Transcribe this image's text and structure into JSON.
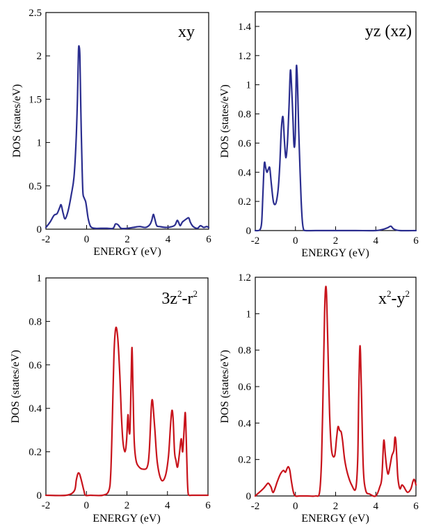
{
  "chart_data": [
    {
      "type": "line",
      "label": "xy",
      "xlabel": "ENERGY (eV)",
      "ylabel": "DOS (states/eV)",
      "xlim": [
        -2,
        6
      ],
      "ylim": [
        0,
        2.5
      ],
      "xticks": [
        "-2",
        "0",
        "2",
        "4",
        "6"
      ],
      "yticks": [
        "0",
        "0.5",
        "1",
        "1.5",
        "2",
        "2.5"
      ],
      "color": "#2b2e8f",
      "series": [
        {
          "x": [
            -2.0,
            -1.8,
            -1.6,
            -1.45,
            -1.32,
            -1.25,
            -1.15,
            -1.05,
            -0.9,
            -0.75,
            -0.62,
            -0.52,
            -0.45,
            -0.4,
            -0.36,
            -0.33,
            -0.3,
            -0.26,
            -0.22,
            -0.18,
            -0.12,
            -0.05,
            0.0,
            0.08,
            0.2,
            0.4,
            0.7,
            1.0,
            1.3,
            1.42,
            1.55,
            1.7,
            2.0,
            2.3,
            2.6,
            2.9,
            3.1,
            3.2,
            3.28,
            3.35,
            3.45,
            3.6,
            3.9,
            4.2,
            4.35,
            4.45,
            4.52,
            4.6,
            4.7,
            4.8,
            4.92,
            5.02,
            5.1,
            5.2,
            5.3,
            5.45,
            5.6,
            5.75,
            5.9,
            6.0
          ],
          "y": [
            0.02,
            0.08,
            0.16,
            0.18,
            0.25,
            0.28,
            0.18,
            0.12,
            0.22,
            0.4,
            0.6,
            1.0,
            1.5,
            2.05,
            2.1,
            2.0,
            1.6,
            1.1,
            0.7,
            0.42,
            0.36,
            0.32,
            0.25,
            0.12,
            0.03,
            0.01,
            0.01,
            0.01,
            0.01,
            0.06,
            0.05,
            0.01,
            0.01,
            0.02,
            0.03,
            0.02,
            0.05,
            0.1,
            0.17,
            0.12,
            0.04,
            0.03,
            0.02,
            0.03,
            0.05,
            0.1,
            0.08,
            0.04,
            0.08,
            0.1,
            0.12,
            0.13,
            0.08,
            0.04,
            0.02,
            0.01,
            0.04,
            0.02,
            0.03,
            0.02
          ]
        }
      ]
    },
    {
      "type": "line",
      "label": "yz (xz)",
      "xlabel": "ENERGY (eV)",
      "ylabel": "DOS (states/eV)",
      "xlim": [
        -2,
        6
      ],
      "ylim": [
        0,
        1.5
      ],
      "xticks": [
        "-2",
        "0",
        "2",
        "4",
        "6"
      ],
      "yticks": [
        "0",
        "0.2",
        "0.4",
        "0.6",
        "0.8",
        "1",
        "1.2",
        "1.4"
      ],
      "color": "#2b2e8f",
      "series": [
        {
          "x": [
            -2.0,
            -1.85,
            -1.75,
            -1.68,
            -1.62,
            -1.55,
            -1.48,
            -1.42,
            -1.35,
            -1.28,
            -1.2,
            -1.1,
            -1.0,
            -0.92,
            -0.85,
            -0.78,
            -0.7,
            -0.62,
            -0.55,
            -0.48,
            -0.4,
            -0.32,
            -0.25,
            -0.18,
            -0.12,
            -0.08,
            -0.04,
            0.0,
            0.04,
            0.08,
            0.12,
            0.16,
            0.22,
            0.28,
            0.34,
            0.4,
            0.5,
            1.0,
            2.0,
            3.0,
            4.0,
            4.4,
            4.6,
            4.75,
            4.9,
            5.2,
            6.0
          ],
          "y": [
            0.0,
            0.0,
            0.01,
            0.06,
            0.25,
            0.46,
            0.43,
            0.4,
            0.42,
            0.43,
            0.32,
            0.2,
            0.18,
            0.22,
            0.3,
            0.45,
            0.7,
            0.78,
            0.62,
            0.5,
            0.6,
            0.85,
            1.1,
            0.95,
            0.75,
            0.6,
            0.58,
            0.7,
            1.1,
            1.09,
            0.92,
            0.7,
            0.45,
            0.22,
            0.07,
            0.01,
            0.0,
            0.0,
            0.0,
            0.0,
            0.0,
            0.01,
            0.02,
            0.03,
            0.01,
            0.0,
            0.0
          ]
        }
      ]
    },
    {
      "type": "line",
      "label_base": "3z",
      "label_sup1": "2",
      "label_mid": "-r",
      "label_sup2": "2",
      "xlabel": "ENERGY (eV)",
      "ylabel": "DOS (states/eV)",
      "xlim": [
        -2,
        6
      ],
      "ylim": [
        0,
        1
      ],
      "xticks": [
        "-2",
        "0",
        "2",
        "4",
        "6"
      ],
      "yticks": [
        "0",
        "0.2",
        "0.4",
        "0.6",
        "0.8",
        "1"
      ],
      "color": "#c8141c",
      "series": [
        {
          "x": [
            -2.0,
            -1.0,
            -0.6,
            -0.5,
            -0.42,
            -0.35,
            -0.28,
            -0.2,
            -0.12,
            -0.05,
            0.2,
            0.8,
            1.1,
            1.2,
            1.28,
            1.36,
            1.45,
            1.55,
            1.65,
            1.72,
            1.8,
            1.9,
            1.98,
            2.05,
            2.1,
            2.15,
            2.2,
            2.25,
            2.3,
            2.36,
            2.45,
            2.6,
            2.8,
            3.0,
            3.1,
            3.2,
            3.25,
            3.3,
            3.38,
            3.5,
            3.7,
            3.9,
            4.05,
            4.15,
            4.22,
            4.28,
            4.35,
            4.42,
            4.5,
            4.6,
            4.68,
            4.75,
            4.82,
            4.88,
            4.93,
            4.98,
            5.02,
            5.08,
            5.2,
            6.0
          ],
          "y": [
            0.0,
            0.0,
            0.02,
            0.07,
            0.1,
            0.1,
            0.08,
            0.05,
            0.02,
            0.0,
            0.0,
            0.0,
            0.02,
            0.1,
            0.35,
            0.65,
            0.77,
            0.72,
            0.55,
            0.38,
            0.25,
            0.2,
            0.25,
            0.37,
            0.3,
            0.3,
            0.5,
            0.68,
            0.48,
            0.25,
            0.16,
            0.13,
            0.12,
            0.13,
            0.2,
            0.4,
            0.44,
            0.4,
            0.3,
            0.15,
            0.07,
            0.09,
            0.18,
            0.32,
            0.39,
            0.35,
            0.2,
            0.16,
            0.13,
            0.2,
            0.26,
            0.2,
            0.3,
            0.38,
            0.25,
            0.08,
            0.01,
            0.0,
            0.0,
            0.0
          ]
        }
      ]
    },
    {
      "type": "line",
      "label_base": "x",
      "label_sup1": "2",
      "label_mid": "-y",
      "label_sup2": "2",
      "xlabel": "ENERGY (eV)",
      "ylabel": "DOS (states/eV)",
      "xlim": [
        -2,
        6
      ],
      "ylim": [
        0,
        1.2
      ],
      "xticks": [
        "-2",
        "0",
        "2",
        "4",
        "6"
      ],
      "yticks": [
        "0",
        "0.2",
        "0.4",
        "0.6",
        "0.8",
        "1",
        "1.2"
      ],
      "color": "#c8141c",
      "series": [
        {
          "x": [
            -2.0,
            -1.8,
            -1.6,
            -1.45,
            -1.35,
            -1.22,
            -1.1,
            -0.9,
            -0.75,
            -0.6,
            -0.5,
            -0.42,
            -0.35,
            -0.28,
            -0.2,
            -0.1,
            0.0,
            0.2,
            0.6,
            1.0,
            1.2,
            1.3,
            1.38,
            1.45,
            1.5,
            1.55,
            1.62,
            1.7,
            1.8,
            1.95,
            2.05,
            2.12,
            2.2,
            2.28,
            2.35,
            2.45,
            2.6,
            2.8,
            3.0,
            3.1,
            3.15,
            3.2,
            3.24,
            3.3,
            3.38,
            3.5,
            3.7,
            4.0,
            4.2,
            4.3,
            4.38,
            4.42,
            4.48,
            4.55,
            4.62,
            4.7,
            4.8,
            4.9,
            4.95,
            5.0,
            5.05,
            5.1,
            5.2,
            5.3,
            5.4,
            5.5,
            5.6,
            5.75,
            5.85,
            5.92,
            6.0
          ],
          "y": [
            0.0,
            0.02,
            0.04,
            0.06,
            0.07,
            0.05,
            0.02,
            0.08,
            0.12,
            0.14,
            0.13,
            0.15,
            0.16,
            0.14,
            0.08,
            0.02,
            0.0,
            0.0,
            0.0,
            0.0,
            0.02,
            0.2,
            0.6,
            1.0,
            1.14,
            1.1,
            0.8,
            0.45,
            0.25,
            0.22,
            0.32,
            0.38,
            0.36,
            0.35,
            0.3,
            0.2,
            0.12,
            0.06,
            0.04,
            0.2,
            0.55,
            0.8,
            0.78,
            0.5,
            0.15,
            0.03,
            0.01,
            0.0,
            0.05,
            0.1,
            0.28,
            0.3,
            0.22,
            0.15,
            0.12,
            0.16,
            0.22,
            0.25,
            0.32,
            0.3,
            0.2,
            0.1,
            0.04,
            0.06,
            0.05,
            0.03,
            0.02,
            0.04,
            0.08,
            0.09,
            0.06
          ]
        }
      ]
    }
  ]
}
